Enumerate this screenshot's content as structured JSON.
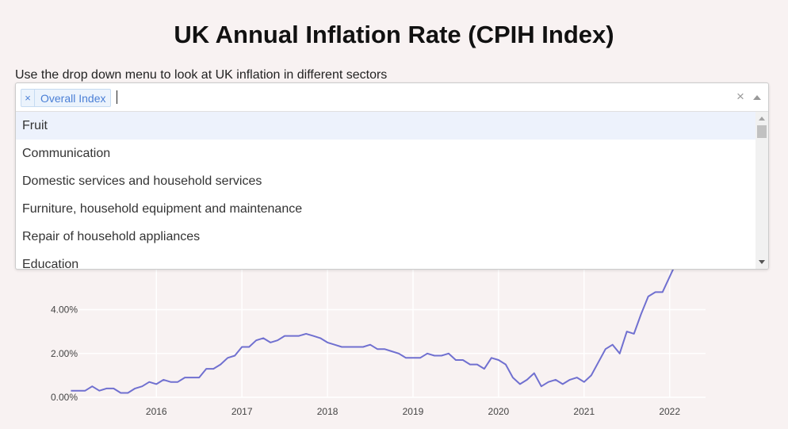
{
  "page": {
    "title": "UK Annual Inflation Rate (CPIH Index)",
    "subtitle": "Use the drop down menu to look at UK inflation in different sectors"
  },
  "dropdown": {
    "selected": [
      {
        "label": "Overall Index",
        "remove_icon": "×"
      }
    ],
    "clear_icon": "×",
    "options": [
      {
        "label": "Fruit"
      },
      {
        "label": "Communication"
      },
      {
        "label": "Domestic services and household services"
      },
      {
        "label": "Furniture, household equipment and maintenance"
      },
      {
        "label": "Repair of household appliances"
      },
      {
        "label": "Education"
      }
    ]
  },
  "chart_data": {
    "type": "line",
    "title": "",
    "xlabel": "",
    "ylabel": "",
    "x_start": 2015.0,
    "x_step_months": 1,
    "xlim": [
      2015.08,
      2022.42
    ],
    "ylim": [
      0,
      8
    ],
    "x_ticks": [
      2016,
      2017,
      2018,
      2019,
      2020,
      2021,
      2022
    ],
    "x_tick_labels": [
      "2016",
      "2017",
      "2018",
      "2019",
      "2020",
      "2021",
      "2022"
    ],
    "y_ticks": [
      0,
      2,
      4
    ],
    "y_tick_labels": [
      "0.00%",
      "2.00%",
      "4.00%"
    ],
    "grid": true,
    "line_color": "#7070d0",
    "series": [
      {
        "values": [
          0.3,
          0.3,
          0.3,
          0.5,
          0.3,
          0.4,
          0.4,
          0.2,
          0.2,
          0.4,
          0.5,
          0.7,
          0.6,
          0.8,
          0.7,
          0.7,
          0.9,
          0.9,
          0.9,
          1.3,
          1.3,
          1.5,
          1.8,
          1.9,
          2.3,
          2.3,
          2.6,
          2.7,
          2.5,
          2.6,
          2.8,
          2.8,
          2.8,
          2.9,
          2.8,
          2.7,
          2.5,
          2.4,
          2.3,
          2.3,
          2.3,
          2.3,
          2.4,
          2.2,
          2.2,
          2.1,
          2.0,
          1.8,
          1.8,
          1.8,
          2.0,
          1.9,
          1.9,
          2.0,
          1.7,
          1.7,
          1.5,
          1.5,
          1.3,
          1.8,
          1.7,
          1.5,
          0.9,
          0.6,
          0.8,
          1.1,
          0.5,
          0.7,
          0.8,
          0.6,
          0.8,
          0.9,
          0.7,
          1.0,
          1.6,
          2.2,
          2.4,
          2.0,
          3.0,
          2.9,
          3.8,
          4.6,
          4.8,
          4.8,
          5.5,
          6.2,
          7.8
        ]
      }
    ]
  }
}
